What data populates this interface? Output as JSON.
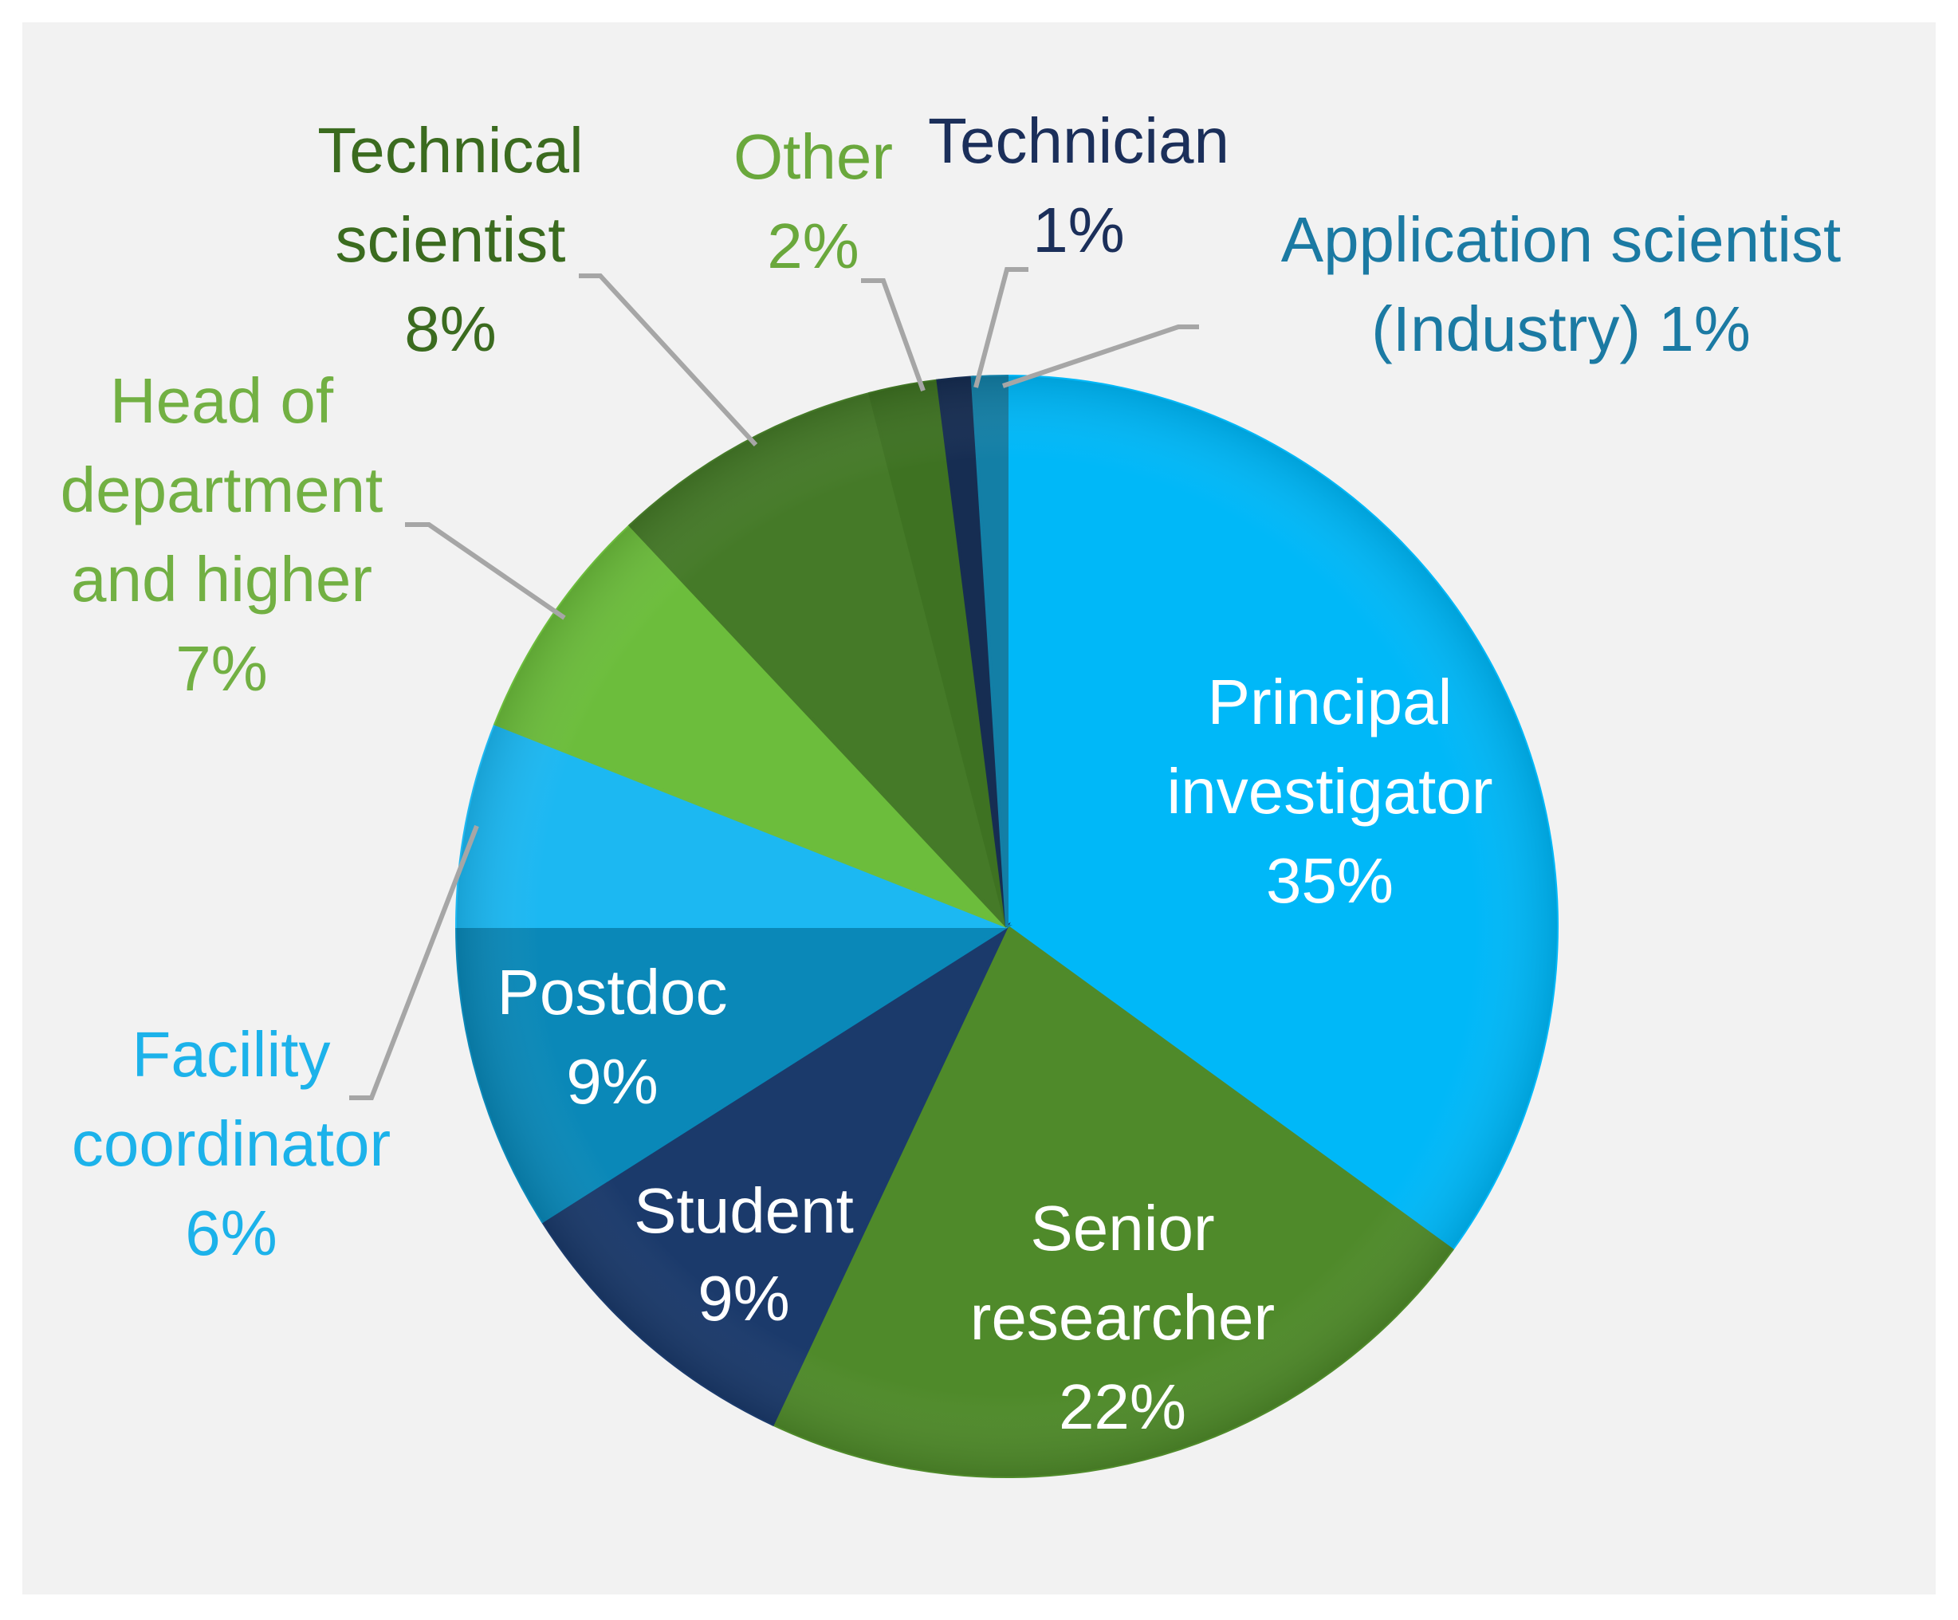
{
  "chart_data": {
    "type": "pie",
    "title": "",
    "slices": [
      {
        "label_lines": [
          "Principal",
          "investigator"
        ],
        "pct_text": "35%",
        "value": 35,
        "color": "#00b8f8",
        "label_color": "#ffffff"
      },
      {
        "label_lines": [
          "Senior",
          "researcher"
        ],
        "pct_text": "22%",
        "value": 22,
        "color": "#4f8a2a",
        "label_color": "#ffffff"
      },
      {
        "label_lines": [
          "Student"
        ],
        "pct_text": "9%",
        "value": 9,
        "color": "#1b3a6b",
        "label_color": "#ffffff"
      },
      {
        "label_lines": [
          "Postdoc"
        ],
        "pct_text": "9%",
        "value": 9,
        "color": "#0a88b8",
        "label_color": "#ffffff"
      },
      {
        "label_lines": [
          "Facility",
          "coordinator"
        ],
        "pct_text": "6%",
        "value": 6,
        "color": "#1cb8f2",
        "label_color": "#1cb2ea"
      },
      {
        "label_lines": [
          "Head of",
          "department",
          "and higher"
        ],
        "pct_text": "7%",
        "value": 7,
        "color": "#6cbd3c",
        "label_color": "#72b043"
      },
      {
        "label_lines": [
          "Technical",
          "scientist"
        ],
        "pct_text": "8%",
        "value": 8,
        "color": "#457a28",
        "label_color": "#3b6b1f"
      },
      {
        "label_lines": [
          "Other"
        ],
        "pct_text": "2%",
        "value": 2,
        "color": "#3e7222",
        "label_color": "#6aa83c"
      },
      {
        "label_lines": [
          "Technician"
        ],
        "pct_text": "1%",
        "value": 1,
        "color": "#162d52",
        "label_color": "#1b2f5a"
      },
      {
        "label_lines": [
          "Application scientist",
          "(Industry)"
        ],
        "pct_text": "1%",
        "value": 1,
        "color": "#137fa6",
        "label_color": "#1b7aa3"
      }
    ]
  }
}
